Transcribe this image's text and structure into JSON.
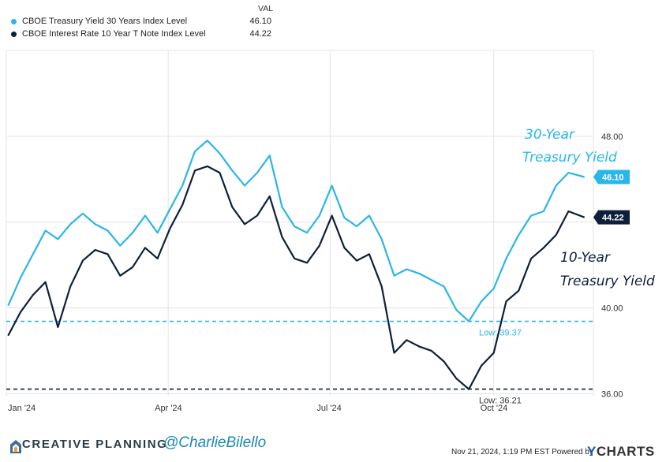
{
  "legend": {
    "header": "VAL",
    "items": [
      {
        "name": "CBOE Treasury Yield 30 Years Index Level",
        "value": "46.10",
        "color": "#29b6e8"
      },
      {
        "name": "CBOE Interest Rate 10 Year T Note Index Level",
        "value": "44.22",
        "color": "#0d1f3c"
      }
    ]
  },
  "annotations": {
    "thirty_year_line1": "30-Year",
    "thirty_year_line2": "Treasury Yield",
    "ten_year_line1": "10-Year",
    "ten_year_line2": "Treasury Yield",
    "low_30": "Low: 39.37",
    "low_10": "Low: 36.21",
    "end_30": "46.10",
    "end_10": "44.22"
  },
  "footer": {
    "brand": "CREATIVE PLANNING",
    "handle": "@CharlieBilello",
    "timestamp": "Nov 21, 2024, 1:19 PM EST Powered by",
    "ycharts": "CHARTS",
    "ycharts_y": "Y"
  },
  "chart_data": {
    "type": "line",
    "y_ticks": [
      "48.00",
      "40.00",
      "36.00"
    ],
    "y_gridlines": [
      36,
      40,
      44,
      48
    ],
    "x_ticks": [
      "Jan '24",
      "Apr '24",
      "Jul '24",
      "Oct '24"
    ],
    "ylim": [
      35.9,
      52.0
    ],
    "grid": true,
    "low_lines": [
      {
        "value": 39.37,
        "color": "#29b6e8",
        "style": "dashed"
      },
      {
        "value": 36.21,
        "color": "#0d1f3c",
        "style": "dashed"
      }
    ],
    "series": [
      {
        "name": "CBOE Treasury Yield 30 Years Index Level",
        "color": "#29b6e8",
        "x": [
          "2024-01-02",
          "2024-01-09",
          "2024-01-16",
          "2024-01-23",
          "2024-01-30",
          "2024-02-06",
          "2024-02-13",
          "2024-02-20",
          "2024-02-27",
          "2024-03-05",
          "2024-03-12",
          "2024-03-19",
          "2024-03-26",
          "2024-04-02",
          "2024-04-09",
          "2024-04-16",
          "2024-04-23",
          "2024-04-30",
          "2024-05-07",
          "2024-05-14",
          "2024-05-21",
          "2024-05-28",
          "2024-06-04",
          "2024-06-11",
          "2024-06-18",
          "2024-06-25",
          "2024-07-02",
          "2024-07-09",
          "2024-07-16",
          "2024-07-23",
          "2024-07-30",
          "2024-08-06",
          "2024-08-13",
          "2024-08-20",
          "2024-08-27",
          "2024-09-03",
          "2024-09-10",
          "2024-09-17",
          "2024-09-24",
          "2024-10-01",
          "2024-10-08",
          "2024-10-15",
          "2024-10-22",
          "2024-10-29",
          "2024-11-05",
          "2024-11-12",
          "2024-11-21"
        ],
        "values": [
          40.1,
          41.4,
          42.5,
          43.6,
          43.2,
          43.9,
          44.4,
          43.9,
          43.6,
          42.9,
          43.5,
          44.3,
          43.5,
          44.6,
          45.7,
          47.3,
          47.8,
          47.2,
          46.4,
          45.7,
          46.3,
          47.1,
          44.7,
          43.8,
          43.5,
          44.3,
          45.7,
          44.2,
          43.8,
          44.3,
          43.2,
          41.5,
          41.8,
          41.6,
          41.3,
          41.0,
          39.9,
          39.37,
          40.3,
          40.9,
          42.3,
          43.4,
          44.3,
          44.5,
          45.7,
          46.3,
          46.1
        ]
      },
      {
        "name": "CBOE Interest Rate 10 Year T Note Index Level",
        "color": "#0d1f3c",
        "x": [
          "2024-01-02",
          "2024-01-09",
          "2024-01-16",
          "2024-01-23",
          "2024-01-30",
          "2024-02-06",
          "2024-02-13",
          "2024-02-20",
          "2024-02-27",
          "2024-03-05",
          "2024-03-12",
          "2024-03-19",
          "2024-03-26",
          "2024-04-02",
          "2024-04-09",
          "2024-04-16",
          "2024-04-23",
          "2024-04-30",
          "2024-05-07",
          "2024-05-14",
          "2024-05-21",
          "2024-05-28",
          "2024-06-04",
          "2024-06-11",
          "2024-06-18",
          "2024-06-25",
          "2024-07-02",
          "2024-07-09",
          "2024-07-16",
          "2024-07-23",
          "2024-07-30",
          "2024-08-06",
          "2024-08-13",
          "2024-08-20",
          "2024-08-27",
          "2024-09-03",
          "2024-09-10",
          "2024-09-17",
          "2024-09-24",
          "2024-10-01",
          "2024-10-08",
          "2024-10-15",
          "2024-10-22",
          "2024-10-29",
          "2024-11-05",
          "2024-11-12",
          "2024-11-21"
        ],
        "values": [
          38.7,
          39.8,
          40.6,
          41.2,
          39.1,
          41.0,
          42.2,
          42.7,
          42.5,
          41.5,
          41.9,
          42.8,
          42.3,
          43.7,
          44.8,
          46.4,
          46.6,
          46.3,
          44.7,
          43.9,
          44.3,
          45.2,
          43.3,
          42.3,
          42.1,
          42.9,
          44.3,
          42.8,
          42.2,
          42.5,
          41.0,
          37.9,
          38.5,
          38.2,
          38.0,
          37.5,
          36.7,
          36.21,
          37.3,
          37.9,
          40.3,
          40.8,
          42.3,
          42.8,
          43.4,
          44.5,
          44.22
        ]
      }
    ]
  }
}
